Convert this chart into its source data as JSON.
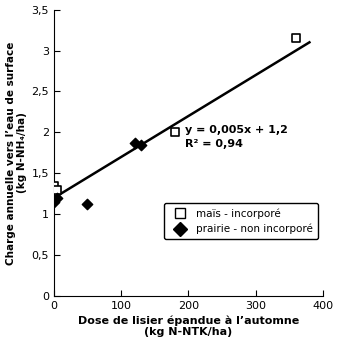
{
  "square_points": [
    [
      0,
      1.35
    ],
    [
      5,
      1.3
    ],
    [
      180,
      2.0
    ],
    [
      360,
      3.15
    ]
  ],
  "diamond_points": [
    [
      0,
      1.15
    ],
    [
      5,
      1.2
    ],
    [
      50,
      1.13
    ],
    [
      120,
      1.87
    ],
    [
      130,
      1.85
    ]
  ],
  "trendline_x": [
    0,
    380
  ],
  "trendline_slope": 0.005,
  "trendline_intercept": 1.2,
  "equation_text": "y = 0,005x + 1,2",
  "r2_text": "R² = 0,94",
  "xlabel_line1": "Dose de lisier épandue à l’automne",
  "xlabel_line2": "(kg N-NTK/ha)",
  "ylabel_line1": "Charge annuelle vers l’eau de surface",
  "ylabel_line2": "(kg N-NH₄/ha)",
  "xlim": [
    0,
    400
  ],
  "ylim": [
    0,
    3.5
  ],
  "xticks": [
    0,
    100,
    200,
    300,
    400
  ],
  "yticks": [
    0,
    0.5,
    1.0,
    1.5,
    2.0,
    2.5,
    3.0,
    3.5
  ],
  "ytick_labels": [
    "0",
    "0,5",
    "1",
    "1,5",
    "2",
    "2,5",
    "3",
    "3,5"
  ],
  "legend_label_square": "maïs - incorporé",
  "legend_label_diamond": "prairie - non incorporé",
  "eq_x": 195,
  "eq_y": 1.85,
  "line_color": "#000000",
  "marker_color": "#000000",
  "background_color": "#ffffff"
}
